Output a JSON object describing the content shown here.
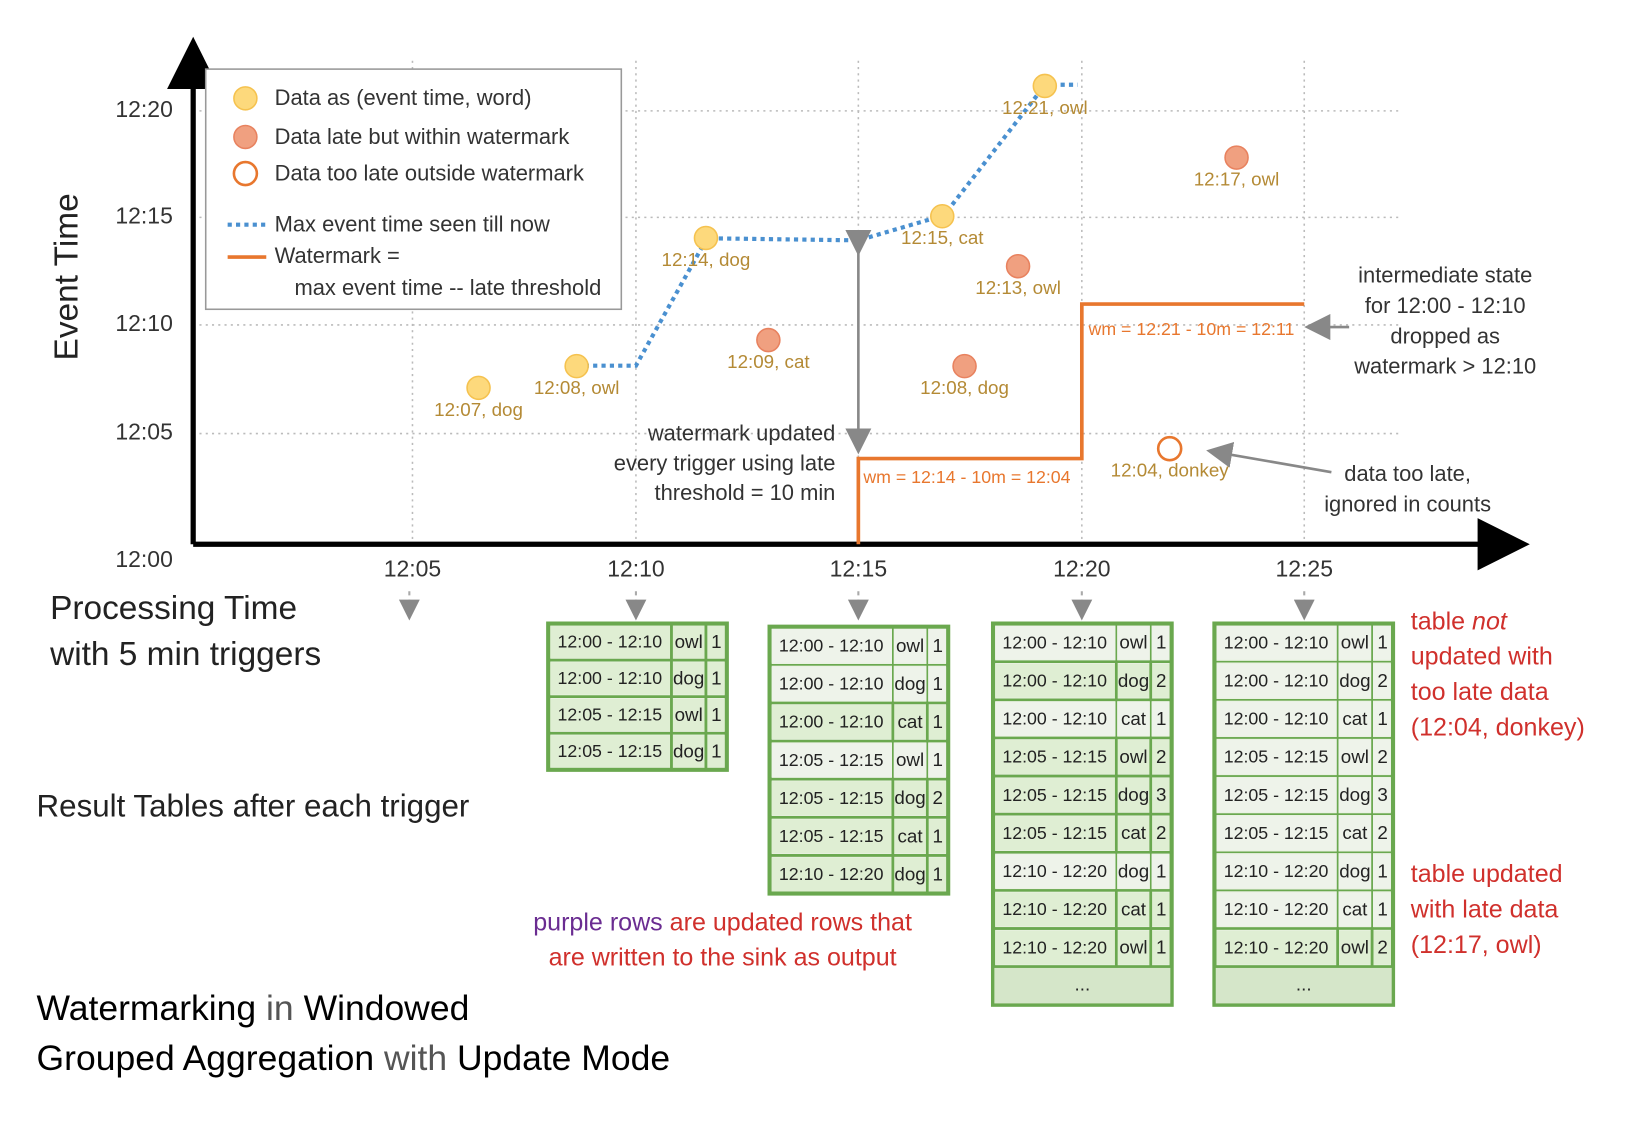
{
  "axes": {
    "y_label": "Event Time",
    "x_label_lines": [
      "Processing Time",
      "with 5 min triggers"
    ],
    "y_ticks": [
      "12:00",
      "12:05",
      "12:10",
      "12:15",
      "12:20"
    ],
    "x_ticks": [
      "12:05",
      "12:10",
      "12:15",
      "12:20",
      "12:25"
    ]
  },
  "legend": {
    "on_time": "Data as (event time, word)",
    "late": "Data late but within watermark",
    "too_late": "Data too late outside watermark",
    "max_event": "Max event time seen till now",
    "watermark_lines": [
      "Watermark =",
      "max event time -- late threshold"
    ]
  },
  "points": [
    {
      "label": "12:07, dog",
      "kind": "on-time",
      "processing_min": 6.4,
      "event_min": 7.2
    },
    {
      "label": "12:08, owl",
      "kind": "on-time",
      "processing_min": 8.6,
      "event_min": 8.2
    },
    {
      "label": "12:14, dog",
      "kind": "on-time",
      "processing_min": 11.5,
      "event_min": 14.1
    },
    {
      "label": "12:09, cat",
      "kind": "late",
      "processing_min": 12.9,
      "event_min": 9.4
    },
    {
      "label": "12:15, cat",
      "kind": "on-time",
      "processing_min": 16.8,
      "event_min": 15.1
    },
    {
      "label": "12:08, dog",
      "kind": "late",
      "processing_min": 17.3,
      "event_min": 8.2
    },
    {
      "label": "12:13, owl",
      "kind": "late",
      "processing_min": 18.5,
      "event_min": 12.8
    },
    {
      "label": "12:21, owl",
      "kind": "on-time",
      "processing_min": 19.1,
      "event_min": 21.1
    },
    {
      "label": "12:04, donkey",
      "kind": "too-late",
      "processing_min": 21.9,
      "event_min": 4.4
    },
    {
      "label": "12:17, owl",
      "kind": "late",
      "processing_min": 23.4,
      "event_min": 17.8
    }
  ],
  "annotations": {
    "watermark_updated": [
      "watermark updated",
      "every trigger using late",
      "threshold = 10 min"
    ],
    "wm1": "wm = 12:14 - 10m = 12:04",
    "wm2": "wm = 12:21 - 10m = 12:11",
    "intermediate": [
      "intermediate state",
      "for 12:00 - 12:10",
      "dropped as",
      "watermark > 12:10"
    ],
    "too_late": [
      "data too late,",
      "ignored in counts"
    ]
  },
  "result_label": "Result Tables after each trigger",
  "tables": [
    {
      "rows": [
        {
          "cells": [
            "12:00 - 12:10",
            "owl",
            "1"
          ],
          "updated": true
        },
        {
          "cells": [
            "12:00 - 12:10",
            "dog",
            "1"
          ],
          "updated": true
        },
        {
          "cells": [
            "12:05 - 12:15",
            "owl",
            "1"
          ],
          "updated": true
        },
        {
          "cells": [
            "12:05 - 12:15",
            "dog",
            "1"
          ],
          "updated": true
        }
      ]
    },
    {
      "rows": [
        {
          "cells": [
            "12:00 - 12:10",
            "owl",
            "1"
          ],
          "updated": false
        },
        {
          "cells": [
            "12:00 - 12:10",
            "dog",
            "1"
          ],
          "updated": false
        },
        {
          "cells": [
            "12:00 - 12:10",
            "cat",
            "1"
          ],
          "updated": true
        },
        {
          "cells": [
            "12:05 - 12:15",
            "owl",
            "1"
          ],
          "updated": false
        },
        {
          "cells": [
            "12:05 - 12:15",
            "dog",
            "2"
          ],
          "updated": true
        },
        {
          "cells": [
            "12:05 - 12:15",
            "cat",
            "1"
          ],
          "updated": true
        },
        {
          "cells": [
            "12:10 - 12:20",
            "dog",
            "1"
          ],
          "updated": true
        }
      ]
    },
    {
      "rows": [
        {
          "cells": [
            "12:00 - 12:10",
            "owl",
            "1"
          ],
          "updated": false
        },
        {
          "cells": [
            "12:00 - 12:10",
            "dog",
            "2"
          ],
          "updated": true
        },
        {
          "cells": [
            "12:00 - 12:10",
            "cat",
            "1"
          ],
          "updated": false
        },
        {
          "cells": [
            "12:05 - 12:15",
            "owl",
            "2"
          ],
          "updated": true
        },
        {
          "cells": [
            "12:05 - 12:15",
            "dog",
            "3"
          ],
          "updated": true
        },
        {
          "cells": [
            "12:05 - 12:15",
            "cat",
            "2"
          ],
          "updated": true
        },
        {
          "cells": [
            "12:10 - 12:20",
            "dog",
            "1"
          ],
          "updated": false
        },
        {
          "cells": [
            "12:10 - 12:20",
            "cat",
            "1"
          ],
          "updated": true
        },
        {
          "cells": [
            "12:10 - 12:20",
            "owl",
            "1"
          ],
          "updated": true
        }
      ],
      "more": "..."
    },
    {
      "rows": [
        {
          "cells": [
            "12:00 - 12:10",
            "owl",
            "1"
          ],
          "updated": false
        },
        {
          "cells": [
            "12:00 - 12:10",
            "dog",
            "2"
          ],
          "updated": false
        },
        {
          "cells": [
            "12:00 - 12:10",
            "cat",
            "1"
          ],
          "updated": false
        },
        {
          "cells": [
            "12:05 - 12:15",
            "owl",
            "2"
          ],
          "updated": false
        },
        {
          "cells": [
            "12:05 - 12:15",
            "dog",
            "3"
          ],
          "updated": false
        },
        {
          "cells": [
            "12:05 - 12:15",
            "cat",
            "2"
          ],
          "updated": false
        },
        {
          "cells": [
            "12:10 - 12:20",
            "dog",
            "1"
          ],
          "updated": false
        },
        {
          "cells": [
            "12:10 - 12:20",
            "cat",
            "1"
          ],
          "updated": false
        },
        {
          "cells": [
            "12:10 - 12:20",
            "owl",
            "2"
          ],
          "updated": true
        }
      ],
      "more": "..."
    }
  ],
  "notes": {
    "not_updated": {
      "first_line": [
        "table",
        "not"
      ],
      "lines": [
        "updated with",
        "too late data",
        "(12:04, donkey)"
      ]
    },
    "updated": [
      "table updated",
      "with late data",
      "(12:17, owl)"
    ]
  },
  "caption": {
    "purple": "purple rows",
    "rest_line1": "are updated rows that",
    "line2": "are written to the sink as output"
  },
  "title": {
    "line1": [
      "Watermarking",
      "in",
      "Windowed"
    ],
    "line2": [
      "Grouped Aggregation",
      "with",
      "Update Mode"
    ]
  }
}
